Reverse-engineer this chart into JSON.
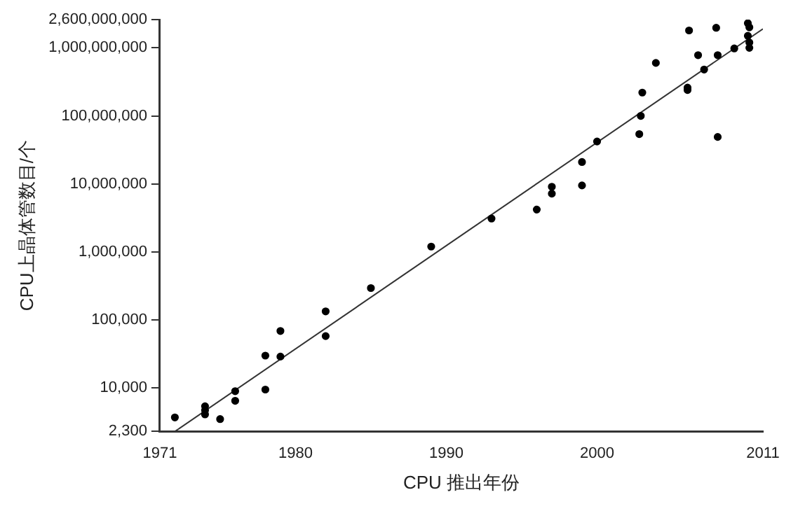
{
  "chart_data": {
    "type": "scatter",
    "xlabel": "CPU 推出年份",
    "ylabel": "CPU上晶体管数目/个",
    "log": "y",
    "xlim": [
      1971,
      2011
    ],
    "xticks": [
      1971,
      1980,
      1990,
      2000,
      2011
    ],
    "ylim": [
      2300,
      2600000000
    ],
    "yticks": [
      {
        "value": 2300,
        "label": "2,300"
      },
      {
        "value": 10000,
        "label": "10,000"
      },
      {
        "value": 100000,
        "label": "100,000"
      },
      {
        "value": 1000000,
        "label": "1,000,000"
      },
      {
        "value": 10000000,
        "label": "10,000,000"
      },
      {
        "value": 100000000,
        "label": "100,000,000"
      },
      {
        "value": 1000000000,
        "label": "1,000,000,000"
      },
      {
        "value": 2600000000,
        "label": "2,600,000,000"
      }
    ],
    "series": [
      {
        "type": "scatter",
        "marker": "circle",
        "color": "#000000",
        "x": [
          1972,
          1974,
          1974,
          1974,
          1975,
          1976,
          1976,
          1978,
          1978,
          1979,
          1979,
          1982,
          1982,
          1985,
          1989,
          1993,
          1996,
          1997,
          1997,
          1999,
          1999,
          2000,
          2002.8,
          2002.9,
          2003,
          2003.9,
          2006,
          2006,
          2006.1,
          2006.7,
          2007.1,
          2007.9,
          2008,
          2008,
          2009.1,
          2010,
          2010.1,
          2010,
          2010.1,
          2010.1
        ],
        "values": [
          3700,
          5400,
          4700,
          4100,
          3500,
          9000,
          6500,
          9500,
          30000,
          69000,
          29000,
          134000,
          58000,
          295000,
          1200000,
          3100000,
          4200000,
          7200000,
          9100000,
          9500000,
          21000000,
          42000000,
          54000000,
          100000000,
          220000000,
          600000000,
          260000000,
          240000000,
          1800000000,
          780000000,
          480000000,
          1970000000,
          780000000,
          49000000,
          980000000,
          2300000000,
          2000000000,
          1500000000,
          1200000000,
          1000000000
        ]
      },
      {
        "type": "line",
        "marker": "none",
        "color": "#333333",
        "x": [
          1972,
          2011
        ],
        "values": [
          2300,
          1900000000
        ]
      }
    ]
  }
}
